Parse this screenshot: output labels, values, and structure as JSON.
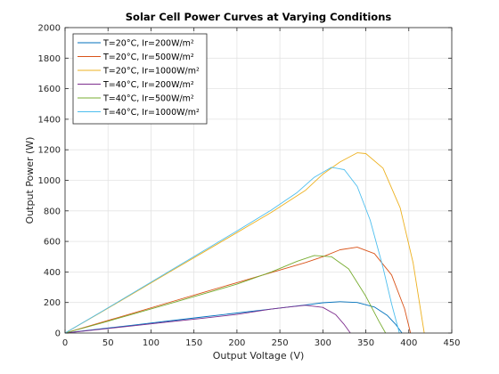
{
  "chart_data": {
    "type": "line",
    "title": "Solar Cell Power Curves at Varying Conditions",
    "xlabel": "Output Voltage (V)",
    "ylabel": "Output Power (W)",
    "xlim": [
      0,
      450
    ],
    "ylim": [
      0,
      2000
    ],
    "xticks": [
      0,
      50,
      100,
      150,
      200,
      250,
      300,
      350,
      400,
      450
    ],
    "yticks": [
      0,
      200,
      400,
      600,
      800,
      1000,
      1200,
      1400,
      1600,
      1800,
      2000
    ],
    "grid": true,
    "legend_location": "top-left",
    "series": [
      {
        "name": "T=20°C, Ir=200W/m²",
        "color": "#0072BD",
        "x": [
          0,
          40,
          80,
          120,
          160,
          200,
          240,
          280,
          300,
          320,
          340,
          360,
          375,
          385,
          392
        ],
        "y": [
          0,
          26,
          52,
          79,
          105,
          131,
          157,
          184,
          198,
          205,
          200,
          170,
          115,
          55,
          0
        ]
      },
      {
        "name": "T=20°C, Ir=500W/m²",
        "color": "#D95319",
        "x": [
          0,
          40,
          80,
          120,
          160,
          200,
          240,
          280,
          300,
          320,
          340,
          360,
          380,
          395,
          402
        ],
        "y": [
          0,
          66,
          132,
          198,
          264,
          330,
          396,
          462,
          500,
          545,
          562,
          520,
          380,
          160,
          0
        ]
      },
      {
        "name": "T=20°C, Ir=1000W/m²",
        "color": "#EDB120",
        "x": [
          0,
          40,
          80,
          120,
          160,
          200,
          240,
          280,
          300,
          320,
          340,
          350,
          370,
          390,
          405,
          418
        ],
        "y": [
          0,
          130,
          262,
          394,
          526,
          658,
          790,
          935,
          1040,
          1120,
          1180,
          1175,
          1080,
          820,
          460,
          0
        ]
      },
      {
        "name": "T=40°C, Ir=200W/m²",
        "color": "#7E2F8E",
        "x": [
          0,
          40,
          80,
          120,
          160,
          200,
          240,
          260,
          280,
          300,
          315,
          325,
          332
        ],
        "y": [
          0,
          24,
          48,
          73,
          97,
          122,
          157,
          170,
          182,
          168,
          120,
          55,
          0
        ]
      },
      {
        "name": "T=40°C, Ir=500W/m²",
        "color": "#77AC30",
        "x": [
          0,
          40,
          80,
          120,
          160,
          200,
          240,
          270,
          290,
          310,
          330,
          350,
          365,
          373
        ],
        "y": [
          0,
          62,
          126,
          190,
          255,
          320,
          400,
          470,
          508,
          500,
          420,
          240,
          80,
          0
        ]
      },
      {
        "name": "T=40°C, Ir=1000W/m²",
        "color": "#4DBEEE",
        "x": [
          0,
          40,
          80,
          120,
          160,
          200,
          240,
          270,
          290,
          310,
          325,
          340,
          355,
          370,
          380,
          389
        ],
        "y": [
          0,
          132,
          266,
          400,
          534,
          668,
          805,
          920,
          1020,
          1085,
          1070,
          960,
          740,
          430,
          190,
          0
        ]
      }
    ]
  }
}
